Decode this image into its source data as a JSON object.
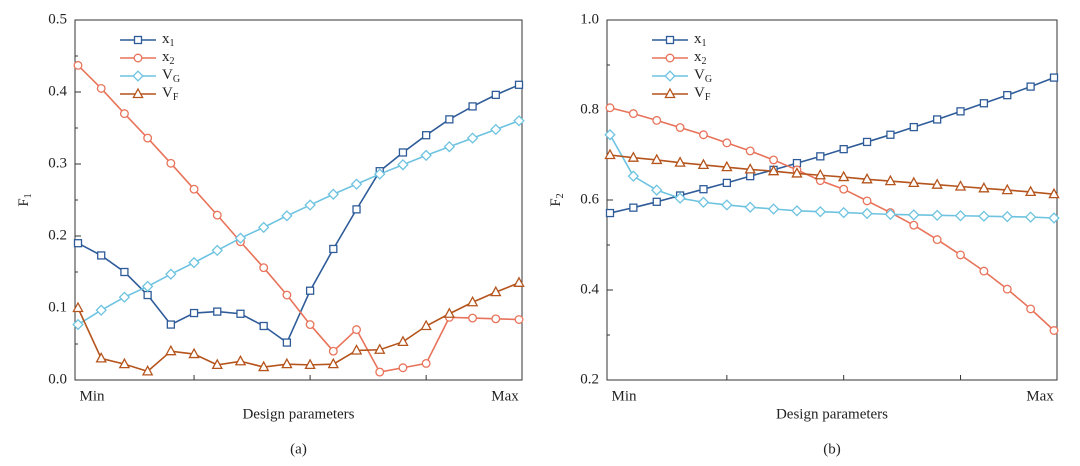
{
  "chart_data": [
    {
      "type": "line",
      "caption": "(a)",
      "xlabel": "Design parameters",
      "ylabel": "F1",
      "categories": [
        "Min",
        null,
        null,
        null,
        null,
        null,
        null,
        null,
        null,
        null,
        null,
        null,
        null,
        null,
        null,
        null,
        null,
        null,
        null,
        "Max"
      ],
      "ylim": [
        0,
        0.5
      ],
      "yticks": [
        {
          "value": 0,
          "label": "0.0"
        },
        0.1,
        0.2,
        0.3,
        0.4,
        0.5
      ],
      "legend": "upper left",
      "series": [
        {
          "name": "x1",
          "color": "#2f5c99",
          "marker": "square",
          "values": [
            0.19,
            0.173,
            0.15,
            0.118,
            0.077,
            0.093,
            0.095,
            0.092,
            0.075,
            0.052,
            0.124,
            0.182,
            0.237,
            0.29,
            0.316,
            0.34,
            0.362,
            0.38,
            0.396,
            0.41
          ]
        },
        {
          "name": "x2",
          "color": "#e8735a",
          "marker": "circle",
          "values": [
            0.437,
            0.405,
            0.37,
            0.336,
            0.301,
            0.265,
            0.229,
            0.192,
            0.156,
            0.118,
            0.077,
            0.04,
            0.07,
            0.011,
            0.017,
            0.023,
            0.087,
            0.086,
            0.085,
            0.084
          ]
        },
        {
          "name": "VG",
          "color": "#6ec3e0",
          "marker": "diamond",
          "values": [
            0.077,
            0.097,
            0.115,
            0.13,
            0.147,
            0.163,
            0.18,
            0.197,
            0.212,
            0.228,
            0.243,
            0.258,
            0.272,
            0.286,
            0.299,
            0.312,
            0.324,
            0.336,
            0.348,
            0.36
          ]
        },
        {
          "name": "VF",
          "color": "#b5541c",
          "marker": "triangle",
          "values": [
            0.1,
            0.03,
            0.022,
            0.012,
            0.04,
            0.036,
            0.021,
            0.026,
            0.018,
            0.022,
            0.021,
            0.022,
            0.041,
            0.042,
            0.053,
            0.075,
            0.092,
            0.108,
            0.122,
            0.135
          ]
        }
      ]
    },
    {
      "type": "line",
      "caption": "(b)",
      "xlabel": "Design parameters",
      "ylabel": "F2",
      "categories": [
        "Min",
        null,
        null,
        null,
        null,
        null,
        null,
        null,
        null,
        null,
        null,
        null,
        null,
        null,
        null,
        null,
        null,
        null,
        null,
        "Max"
      ],
      "ylim": [
        0.2,
        1.0
      ],
      "yticks": [
        0.2,
        0.4,
        0.6,
        0.8,
        {
          "value": 1.0,
          "label": "1.0"
        }
      ],
      "legend": "upper left",
      "series": [
        {
          "name": "x1",
          "color": "#2f5c99",
          "marker": "square",
          "values": [
            0.571,
            0.583,
            0.596,
            0.61,
            0.624,
            0.638,
            0.653,
            0.667,
            0.682,
            0.697,
            0.713,
            0.729,
            0.745,
            0.762,
            0.779,
            0.797,
            0.815,
            0.833,
            0.852,
            0.872
          ]
        },
        {
          "name": "x2",
          "color": "#e8735a",
          "marker": "circle",
          "values": [
            0.805,
            0.792,
            0.777,
            0.761,
            0.745,
            0.727,
            0.709,
            0.689,
            0.667,
            0.643,
            0.624,
            0.598,
            0.572,
            0.544,
            0.512,
            0.478,
            0.442,
            0.402,
            0.358,
            0.31
          ]
        },
        {
          "name": "VG",
          "color": "#6ec3e0",
          "marker": "diamond",
          "values": [
            0.745,
            0.653,
            0.622,
            0.604,
            0.595,
            0.589,
            0.584,
            0.58,
            0.576,
            0.574,
            0.572,
            0.57,
            0.568,
            0.567,
            0.566,
            0.565,
            0.564,
            0.563,
            0.562,
            0.56
          ]
        },
        {
          "name": "VF",
          "color": "#b5541c",
          "marker": "triangle",
          "values": [
            0.7,
            0.694,
            0.689,
            0.683,
            0.678,
            0.673,
            0.668,
            0.664,
            0.659,
            0.655,
            0.651,
            0.646,
            0.642,
            0.638,
            0.634,
            0.63,
            0.626,
            0.622,
            0.618,
            0.613
          ]
        }
      ]
    }
  ]
}
